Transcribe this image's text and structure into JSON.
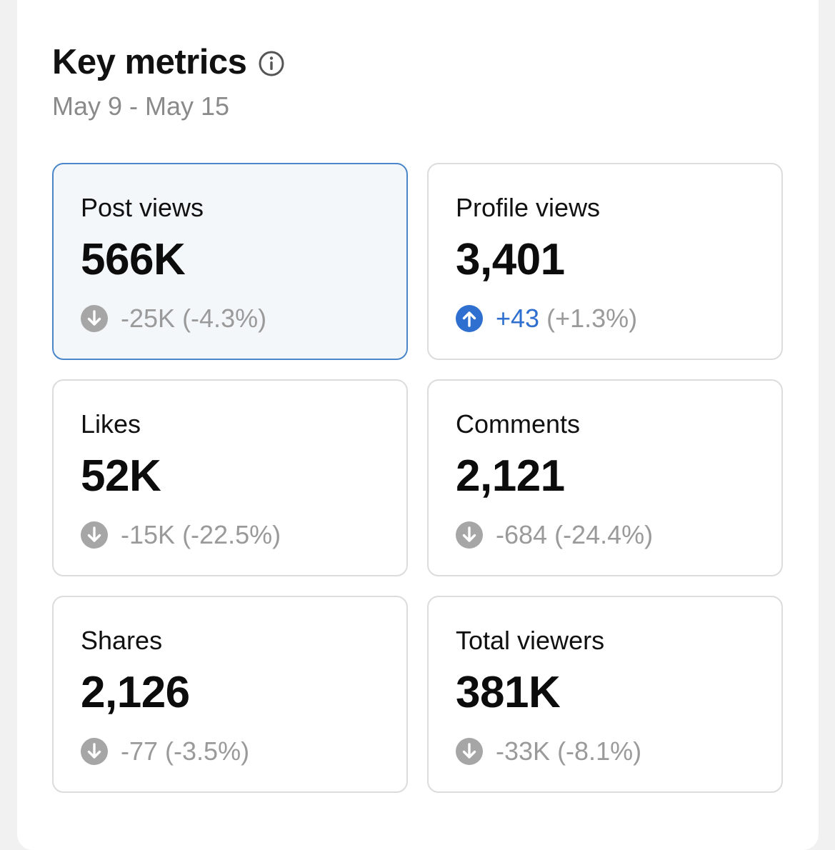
{
  "header": {
    "title": "Key metrics",
    "date_range": "May 9 - May 15"
  },
  "metrics": [
    {
      "label": "Post views",
      "value": "566K",
      "delta": "-25K",
      "percent": "(-4.3%)",
      "direction": "down",
      "selected": true
    },
    {
      "label": "Profile views",
      "value": "3,401",
      "delta": "+43",
      "percent": "(+1.3%)",
      "direction": "up",
      "selected": false
    },
    {
      "label": "Likes",
      "value": "52K",
      "delta": "-15K",
      "percent": "(-22.5%)",
      "direction": "down",
      "selected": false
    },
    {
      "label": "Comments",
      "value": "2,121",
      "delta": "-684",
      "percent": "(-24.4%)",
      "direction": "down",
      "selected": false
    },
    {
      "label": "Shares",
      "value": "2,126",
      "delta": "-77",
      "percent": "(-3.5%)",
      "direction": "down",
      "selected": false
    },
    {
      "label": "Total viewers",
      "value": "381K",
      "delta": "-33K",
      "percent": "(-8.1%)",
      "direction": "down",
      "selected": false
    }
  ],
  "colors": {
    "up": "#2f6fcf",
    "down": "#a6a6a6",
    "selected_border": "#4a86c9"
  },
  "icons": {
    "info": "info-circle-icon",
    "down": "arrow-down-circle-icon",
    "up": "arrow-up-circle-icon"
  }
}
